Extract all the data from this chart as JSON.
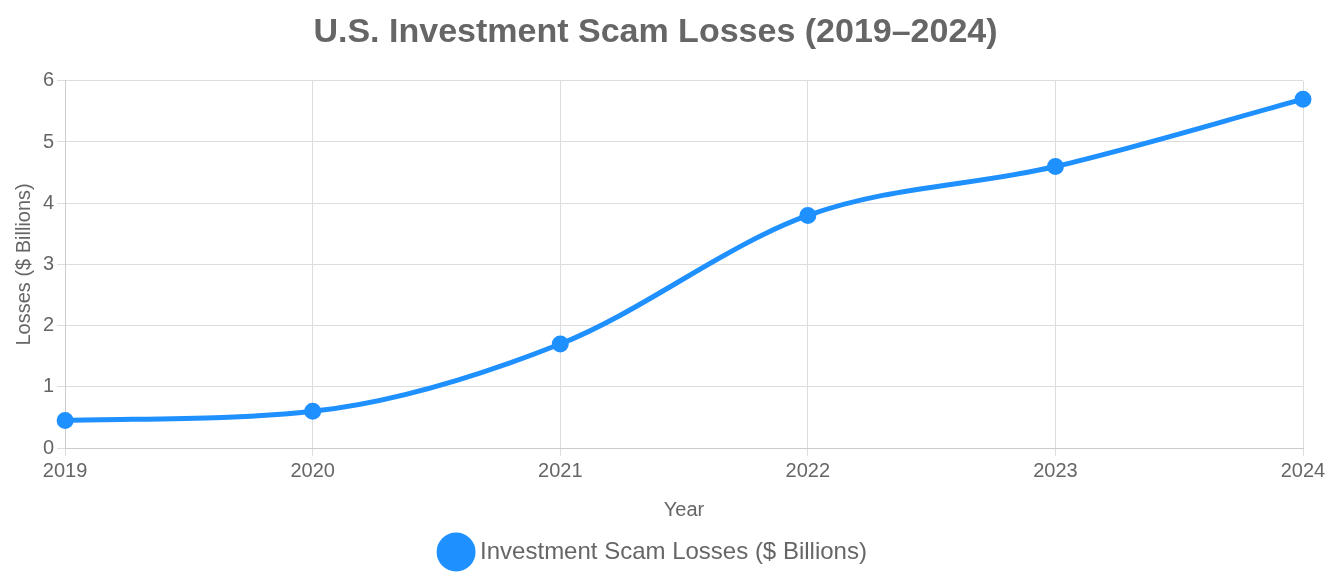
{
  "chart_data": {
    "type": "line",
    "title": "U.S. Investment Scam Losses (2019–2024)",
    "xlabel": "Year",
    "ylabel": "Losses ($ Billions)",
    "categories": [
      "2019",
      "2020",
      "2021",
      "2022",
      "2023",
      "2024"
    ],
    "series": [
      {
        "name": "Investment Scam Losses ($ Billions)",
        "color": "#1e90ff",
        "values": [
          0.45,
          0.6,
          1.7,
          3.8,
          4.6,
          5.7
        ]
      }
    ],
    "ylim": [
      0,
      6
    ],
    "yticks": [
      0,
      1,
      2,
      3,
      4,
      5,
      6
    ],
    "grid": true,
    "legend": "bottom",
    "marker": "circle",
    "line_style": "solid"
  }
}
